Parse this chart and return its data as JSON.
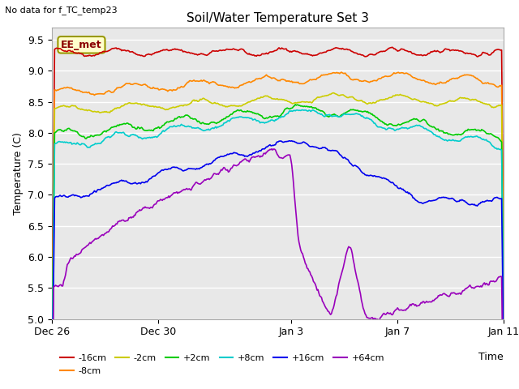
{
  "title": "Soil/Water Temperature Set 3",
  "subtitle": "No data for f_TC_temp23",
  "ylabel": "Temperature (C)",
  "xlabel": "Time",
  "annotation": "EE_met",
  "ylim": [
    5.0,
    9.7
  ],
  "background_color": "#ffffff",
  "plot_bg_color": "#e8e8e8",
  "grid_color": "#ffffff",
  "colors": {
    "-16cm": "#cc0000",
    "-8cm": "#ff8800",
    "-2cm": "#cccc00",
    "+2cm": "#00cc00",
    "+8cm": "#00cccc",
    "+16cm": "#0000ee",
    "+64cm": "#9900bb"
  },
  "tick_labels": [
    "Dec 26",
    "Dec 30",
    "Jan 3",
    "Jan 7",
    "Jan 11"
  ],
  "tick_positions": [
    0,
    4,
    9,
    13,
    17
  ],
  "yticks": [
    5.0,
    5.5,
    6.0,
    6.5,
    7.0,
    7.5,
    8.0,
    8.5,
    9.0,
    9.5
  ],
  "n_days": 17,
  "n_points": 500,
  "seed": 42
}
